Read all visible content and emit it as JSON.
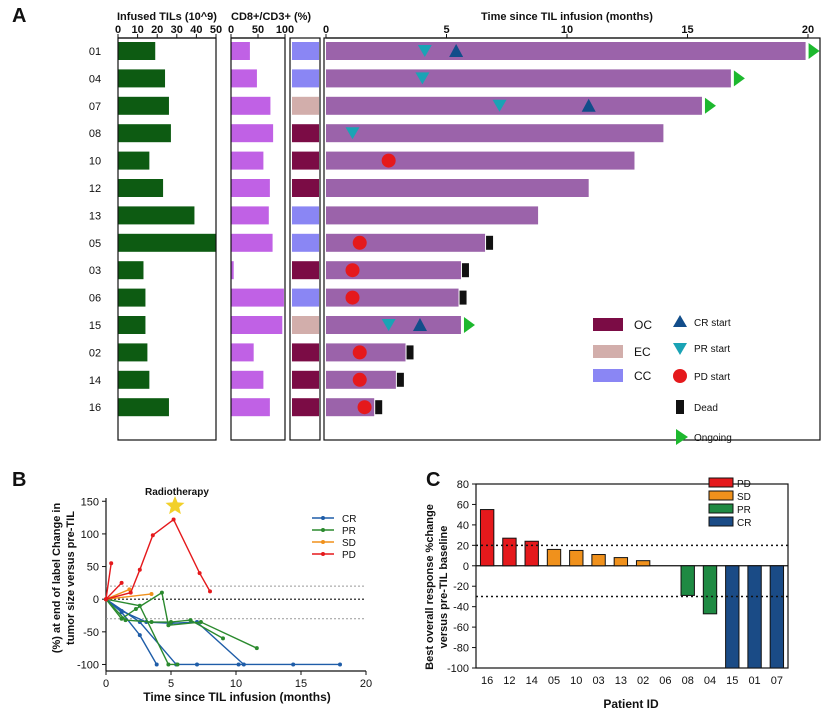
{
  "panels": {
    "a": {
      "label": "A",
      "patients": [
        "01",
        "04",
        "07",
        "08",
        "10",
        "12",
        "13",
        "05",
        "03",
        "06",
        "15",
        "02",
        "14",
        "16"
      ],
      "tils": {
        "title": "Infused TILs (10^9)",
        "ticks": [
          0,
          10,
          20,
          30,
          40,
          50
        ],
        "xlim": [
          0,
          50
        ],
        "values": [
          19,
          24,
          26,
          27,
          16,
          23,
          39,
          50,
          13,
          14,
          14,
          15,
          16,
          26
        ],
        "color": "#0d5b12"
      },
      "cd8": {
        "title": "CD8+/CD3+ (%)",
        "ticks": [
          0,
          50,
          100
        ],
        "xlim": [
          0,
          100
        ],
        "values": [
          35,
          48,
          73,
          78,
          60,
          72,
          70,
          77,
          5,
          98,
          95,
          42,
          60,
          72
        ],
        "color": "#c061e5"
      },
      "cancer_type": {
        "values": [
          "CC",
          "CC",
          "EC",
          "OC",
          "OC",
          "OC",
          "CC",
          "CC",
          "OC",
          "CC",
          "EC",
          "OC",
          "OC",
          "OC"
        ]
      },
      "swimmer": {
        "title": "Time since TIL infusion (months)",
        "ticks": [
          0,
          5,
          10,
          15,
          20
        ],
        "xlim": [
          0,
          20
        ],
        "bar_color": "#9b63aa",
        "durations": [
          19.9,
          16.8,
          15.6,
          14.0,
          12.8,
          10.9,
          8.8,
          6.6,
          5.6,
          5.5,
          5.6,
          3.3,
          2.9,
          2.0
        ],
        "status": [
          "ongoing",
          "ongoing",
          "ongoing",
          "none",
          "none",
          "none",
          "none",
          "dead",
          "dead",
          "dead",
          "ongoing",
          "dead",
          "dead",
          "dead"
        ],
        "pr_start": [
          4.1,
          4.0,
          7.2,
          1.1,
          null,
          null,
          null,
          null,
          null,
          null,
          2.6,
          null,
          null,
          null
        ],
        "cr_start": [
          5.4,
          null,
          10.9,
          null,
          null,
          null,
          null,
          null,
          null,
          null,
          3.9,
          null,
          null,
          null
        ],
        "pd_start": [
          null,
          null,
          null,
          null,
          2.6,
          null,
          null,
          1.4,
          1.1,
          1.1,
          null,
          1.4,
          1.4,
          1.6
        ]
      },
      "legend": {
        "oc": "OC",
        "ec": "EC",
        "cc": "CC",
        "cr": "CR start",
        "pr": "PR start",
        "pd": "PD start",
        "dead": "Dead",
        "ongoing": "Ongoing",
        "colors": {
          "OC": "#7b0c45",
          "EC": "#d2aeab",
          "CC": "#8a86f4",
          "CR": "#124d8a",
          "PR": "#1aa3b5",
          "PD": "#e5191c",
          "Dead": "#111111",
          "Ongoing": "#1db82e"
        }
      }
    },
    "b": {
      "label": "B",
      "chart_data": {
        "type": "line",
        "title": "",
        "annotation": "Radiotherapy",
        "xlabel": "Time since TIL infusion (months)",
        "ylabel_lines": [
          "(%) at end of label Change in",
          "tumor size versus pre-TIL"
        ],
        "xlim": [
          0,
          20
        ],
        "ylim": [
          -110,
          155
        ],
        "xticks": [
          0,
          5,
          10,
          15,
          20
        ],
        "yticks": [
          -100,
          -50,
          0,
          50,
          100,
          150
        ],
        "ref_lines": [
          20,
          0,
          -30
        ],
        "legend": [
          "CR",
          "PR",
          "SD",
          "PD"
        ],
        "series": [
          {
            "name": "CR",
            "color": "#1f5da8",
            "points": [
              [
                0,
                0
              ],
              [
                2.6,
                -35
              ],
              [
                5.4,
                -100
              ],
              [
                7.0,
                -100
              ],
              [
                10.2,
                -100
              ],
              [
                14.4,
                -100
              ],
              [
                18.0,
                -100
              ]
            ]
          },
          {
            "name": "CR",
            "color": "#1f5da8",
            "points": [
              [
                0,
                0
              ],
              [
                1.2,
                -20
              ],
              [
                2.6,
                -55
              ],
              [
                3.9,
                -100
              ]
            ]
          },
          {
            "name": "CR",
            "color": "#1f5da8",
            "points": [
              [
                0,
                0
              ],
              [
                1.2,
                -18
              ],
              [
                3.1,
                -35
              ],
              [
                5.0,
                -37
              ],
              [
                7.0,
                -35
              ],
              [
                10.6,
                -100
              ]
            ]
          },
          {
            "name": "PR",
            "color": "#2b8a2e",
            "points": [
              [
                0,
                0
              ],
              [
                1.2,
                -30
              ],
              [
                2.3,
                -15
              ],
              [
                4.3,
                10
              ],
              [
                4.8,
                -40
              ],
              [
                7.3,
                -35
              ],
              [
                11.6,
                -75
              ]
            ]
          },
          {
            "name": "PR",
            "color": "#2b8a2e",
            "points": [
              [
                0,
                0
              ],
              [
                2.6,
                -10
              ],
              [
                4.8,
                -100
              ],
              [
                5.5,
                -100
              ]
            ]
          },
          {
            "name": "PR",
            "color": "#2b8a2e",
            "points": [
              [
                0,
                0
              ],
              [
                1.5,
                -32
              ],
              [
                3.5,
                -35
              ],
              [
                5.0,
                -35
              ],
              [
                6.5,
                -32
              ],
              [
                9.0,
                -60
              ]
            ]
          },
          {
            "name": "SD",
            "color": "#f0911c",
            "points": [
              [
                0,
                0
              ],
              [
                1.8,
                15
              ]
            ]
          },
          {
            "name": "SD",
            "color": "#f0911c",
            "points": [
              [
                0,
                0
              ],
              [
                3.5,
                8
              ]
            ]
          },
          {
            "name": "PD",
            "color": "#e5191c",
            "points": [
              [
                0,
                0
              ],
              [
                0.4,
                55
              ]
            ]
          },
          {
            "name": "PD",
            "color": "#e5191c",
            "points": [
              [
                0,
                0
              ],
              [
                1.2,
                25
              ]
            ]
          },
          {
            "name": "PD",
            "color": "#e5191c",
            "points": [
              [
                0,
                0
              ],
              [
                1.9,
                10
              ],
              [
                2.6,
                45
              ],
              [
                3.6,
                98
              ],
              [
                5.2,
                122
              ],
              [
                7.2,
                40
              ],
              [
                8.0,
                12
              ]
            ]
          }
        ]
      }
    },
    "c": {
      "label": "C",
      "chart_data": {
        "type": "bar",
        "title": "",
        "xlabel": "Patient ID",
        "ylabel_lines": [
          "Best overall response %change",
          "versus pre-TIL baseline"
        ],
        "ylim": [
          -100,
          80
        ],
        "yticks": [
          80,
          60,
          40,
          20,
          0,
          -20,
          -40,
          -60,
          -80,
          -100
        ],
        "ref_lines": [
          20,
          -30
        ],
        "categories": [
          "16",
          "12",
          "14",
          "05",
          "10",
          "03",
          "13",
          "02",
          "06",
          "08",
          "04",
          "15",
          "01",
          "07"
        ],
        "values": [
          55,
          27,
          24,
          16,
          15,
          11,
          8,
          5,
          0,
          -29,
          -47,
          -100,
          -100,
          -100
        ],
        "response": [
          "PD",
          "PD",
          "PD",
          "SD",
          "SD",
          "SD",
          "SD",
          "SD",
          "SD",
          "PR",
          "PR",
          "CR",
          "CR",
          "CR"
        ],
        "legend": [
          "PD",
          "SD",
          "PR",
          "CR"
        ],
        "colors": {
          "PD": "#e5191c",
          "SD": "#f0911c",
          "PR": "#1e8a43",
          "CR": "#1a4b86"
        }
      }
    }
  }
}
